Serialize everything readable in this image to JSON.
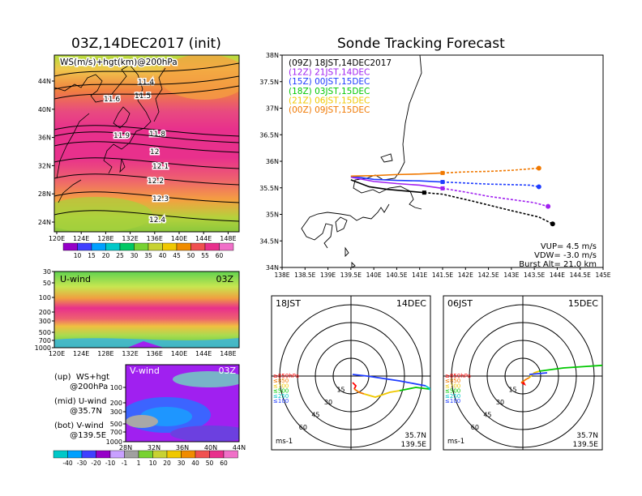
{
  "left": {
    "title": "03Z,14DEC2017 (init)",
    "map": {
      "label": "WS(m/s)+hgt(km)@200hPa",
      "lat_ticks": [
        "44N",
        "40N",
        "36N",
        "32N",
        "28N",
        "24N"
      ],
      "lon_ticks": [
        "120E",
        "124E",
        "128E",
        "132E",
        "136E",
        "140E",
        "144E",
        "148E"
      ],
      "contours": [
        "11.4",
        "11.5",
        "11.6",
        "11.8",
        "11.9",
        "12",
        "12.1",
        "12.2",
        "12.3",
        "12.4"
      ],
      "colorbar": [
        "10",
        "15",
        "20",
        "25",
        "30",
        "35",
        "40",
        "45",
        "50",
        "55",
        "60"
      ]
    },
    "uwind": {
      "label": "U-wind",
      "time": "03Z",
      "p_ticks": [
        "30",
        "50",
        "100",
        "200",
        "300",
        "500",
        "700",
        "1000"
      ],
      "lon_ticks": [
        "120E",
        "124E",
        "128E",
        "132E",
        "136E",
        "140E",
        "144E",
        "148E"
      ]
    },
    "vwind": {
      "label": "V-wind",
      "time": "03Z",
      "p_ticks": [
        "100",
        "200",
        "300",
        "500",
        "700",
        "1000"
      ],
      "lat_ticks": [
        "28N",
        "32N",
        "36N",
        "40N",
        "44N"
      ]
    },
    "colorbar2": [
      "-40",
      "-30",
      "-20",
      "-10",
      "-1",
      "1",
      "10",
      "20",
      "30",
      "40",
      "50",
      "60"
    ],
    "notes": [
      "(up)  WS+hgt",
      "      @200hPa",
      "(mid) U-wind",
      "      @35.7N",
      "(bot) V-wind",
      "      @139.5E"
    ]
  },
  "right": {
    "title": "Sonde Tracking Forecast",
    "colors": {
      "c00": "#000000",
      "c12": "#a020f0",
      "c15": "#1e3cff",
      "c18": "#00c800",
      "c21": "#f0c800",
      "c24": "#f07800"
    },
    "legend": [
      {
        "label": "(09Z) 18JST,14DEC2017",
        "color": "#000000"
      },
      {
        "label": "(12Z) 21JST,14DEC",
        "color": "#a020f0"
      },
      {
        "label": "(15Z) 00JST,15DEC",
        "color": "#1e3cff"
      },
      {
        "label": "(18Z) 03JST,15DEC",
        "color": "#00c800"
      },
      {
        "label": "(21Z) 06JST,15DEC",
        "color": "#f0c800"
      },
      {
        "label": "(00Z) 09JST,15DEC",
        "color": "#f07800"
      }
    ],
    "info": [
      "VUP=  4.5 m/s",
      "VDW= -3.0 m/s",
      "Burst Alt=  21.0 km"
    ],
    "lat_ticks": [
      "38N",
      "37.5N",
      "37N",
      "36.5N",
      "36N",
      "35.5N",
      "35N",
      "34.5N",
      "34N"
    ],
    "lon_ticks": [
      "138E",
      "138.5E",
      "139E",
      "139.5E",
      "140E",
      "140.5E",
      "141E",
      "141.5E",
      "142E",
      "142.5E",
      "143E",
      "143.5E",
      "144E",
      "144.5E",
      "145E"
    ],
    "hodo1": {
      "time": "18JST",
      "date": "14DEC",
      "loc1": "35.7N",
      "loc2": "139.5E",
      "unit": "ms-1",
      "rings": [
        "15",
        "30",
        "45",
        "60"
      ]
    },
    "hodo2": {
      "time": "06JST",
      "date": "15DEC",
      "loc1": "35.7N",
      "loc2": "139.5E",
      "unit": "ms-1",
      "rings": [
        "15",
        "30",
        "45",
        "60"
      ]
    },
    "hodo_legend": [
      "≥850hPa",
      "≤850",
      "≤700",
      "≤500",
      "≤250",
      "≤100"
    ]
  },
  "chart_data": [
    {
      "type": "heatmap",
      "title": "03Z,14DEC2017 (init)",
      "label": "WS(m/s)+hgt(km)@200hPa",
      "contour_values_km": [
        11.4,
        11.5,
        11.6,
        11.8,
        11.9,
        12.0,
        12.1,
        12.2,
        12.3,
        12.4
      ],
      "colorbar_m_s": [
        10,
        15,
        20,
        25,
        30,
        35,
        40,
        45,
        50,
        55,
        60
      ],
      "xlim": [
        "120E",
        "150E"
      ],
      "ylim": [
        "22N",
        "48N"
      ]
    },
    {
      "type": "line",
      "title": "Sonde Tracking Forecast",
      "series": [
        {
          "name": "(09Z) 18JST,14DEC2017",
          "lon": [
            139.5,
            139.9,
            140.3,
            140.7,
            141.1,
            141.5,
            142.2,
            143.0,
            143.6,
            143.9
          ],
          "lat": [
            35.65,
            35.52,
            35.47,
            35.44,
            35.41,
            35.38,
            35.24,
            35.07,
            34.95,
            34.82
          ]
        },
        {
          "name": "(12Z) 21JST,14DEC",
          "lon": [
            139.5,
            140.0,
            140.5,
            141.0,
            141.5,
            142.0,
            142.5,
            143.0,
            143.5,
            143.8
          ],
          "lat": [
            35.7,
            35.62,
            35.58,
            35.55,
            35.49,
            35.42,
            35.34,
            35.28,
            35.22,
            35.15
          ]
        },
        {
          "name": "(15Z) 00JST,15DEC",
          "lon": [
            139.5,
            140.0,
            140.5,
            141.0,
            141.5,
            142.0,
            142.5,
            143.0,
            143.4,
            143.6
          ],
          "lat": [
            35.72,
            35.66,
            35.64,
            35.63,
            35.61,
            35.59,
            35.57,
            35.56,
            35.55,
            35.52
          ]
        },
        {
          "name": "(00Z) 09JST,15DEC",
          "lon": [
            139.5,
            140.0,
            140.5,
            141.0,
            141.5,
            142.0,
            142.5,
            143.0,
            143.3,
            143.6
          ],
          "lat": [
            35.72,
            35.73,
            35.75,
            35.76,
            35.78,
            35.8,
            35.81,
            35.83,
            35.85,
            35.87
          ]
        }
      ],
      "xlim": [
        138,
        145
      ],
      "ylim": [
        34,
        38
      ]
    }
  ]
}
